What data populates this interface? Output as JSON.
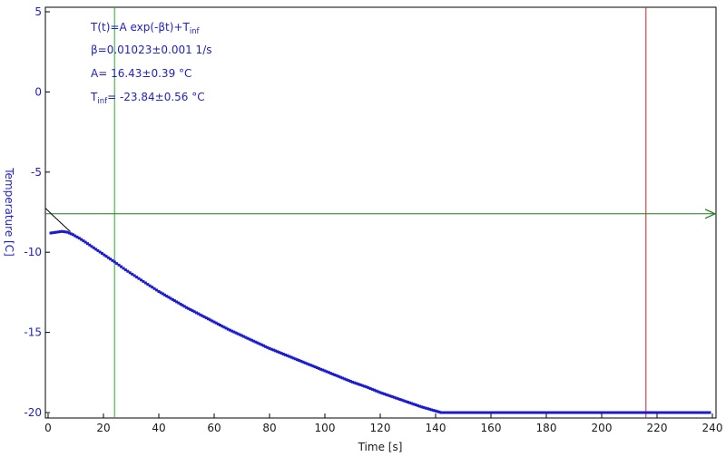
{
  "chart_data": {
    "type": "line",
    "xlabel": "Time [s]",
    "ylabel": "Temperature [C]",
    "xlim": [
      0,
      240
    ],
    "ylim": [
      -20,
      5
    ],
    "x_ticks": [
      "0",
      "20",
      "40",
      "60",
      "80",
      "100",
      "120",
      "140",
      "160",
      "180",
      "200",
      "220",
      "240"
    ],
    "y_ticks": [
      "5",
      "0",
      "-5",
      "-10",
      "-15",
      "-20"
    ],
    "grid": false,
    "series": [
      {
        "style": "measured",
        "color": "#1a1ad0",
        "x": [
          1,
          3,
          5,
          7,
          9,
          12,
          15,
          18,
          21,
          24,
          28,
          32,
          36,
          40,
          45,
          50,
          55,
          60,
          65,
          70,
          75,
          80,
          85,
          90,
          95,
          100,
          105,
          110,
          115,
          120,
          125,
          130,
          135,
          140,
          142,
          150,
          160,
          170,
          180,
          190,
          200,
          210,
          220,
          230,
          239
        ],
        "y": [
          -8.8,
          -8.75,
          -8.7,
          -8.75,
          -8.9,
          -9.2,
          -9.55,
          -9.9,
          -10.25,
          -10.6,
          -11.1,
          -11.55,
          -12.0,
          -12.45,
          -12.95,
          -13.45,
          -13.9,
          -14.35,
          -14.8,
          -15.2,
          -15.6,
          -16.0,
          -16.35,
          -16.7,
          -17.05,
          -17.4,
          -17.75,
          -18.1,
          -18.4,
          -18.75,
          -19.05,
          -19.35,
          -19.65,
          -19.9,
          -20.0,
          -20.0,
          -20.0,
          -20.0,
          -20.0,
          -20.0,
          -20.0,
          -20.0,
          -20.0,
          -20.0,
          -20.0
        ]
      },
      {
        "style": "fit",
        "color": "#000000",
        "x_range": [
          -1,
          8
        ],
        "A": 16.43,
        "beta": 0.01023,
        "T_inf": -23.84
      }
    ],
    "markers": {
      "green_vertical_x": 24,
      "red_vertical_x": 216,
      "green_horizontal_y": -7.6,
      "green_color": "#22b022",
      "red_color": "#d42020",
      "horizontal_color": "#1f7a1f"
    },
    "annotations": {
      "formula_main": "T(t)=A exp(-βt)+T",
      "formula_sub": "inf",
      "beta": "β=0.01023±0.001 1/s",
      "A": "A= 16.43±0.39 °C",
      "tinf_prefix": "T",
      "tinf_sub": "inf",
      "tinf_value": "= -23.84±0.56 °C"
    }
  }
}
